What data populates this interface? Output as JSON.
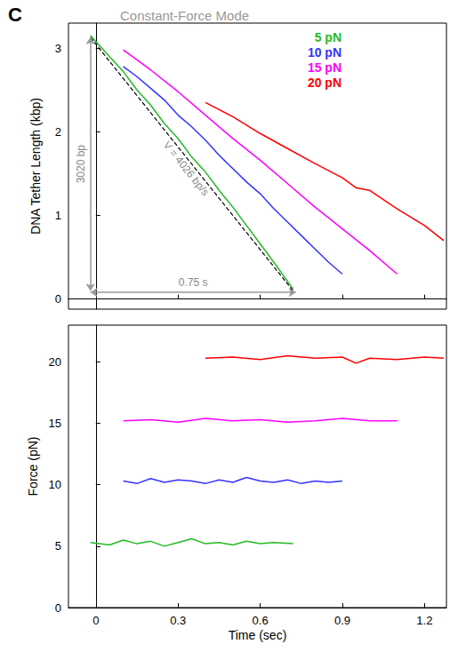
{
  "chart_data": [
    {
      "type": "line",
      "title": "Constant-Force Mode",
      "panel": "C",
      "y_label": "DNA Tether Length (kbp)",
      "xlim": [
        -0.1,
        1.28
      ],
      "xticks": [
        0,
        0.3,
        0.6,
        0.9,
        1.2
      ],
      "ylim": [
        -0.12,
        3.3
      ],
      "yticks": [
        0,
        1,
        2,
        3
      ],
      "tick_labels": "y",
      "grid": false,
      "legend": "upper right",
      "series": [
        {
          "name": "5 pN",
          "color": "#22bb22",
          "x": [
            -0.02,
            0.05,
            0.1,
            0.15,
            0.2,
            0.25,
            0.3,
            0.35,
            0.4,
            0.45,
            0.5,
            0.55,
            0.6,
            0.65,
            0.72
          ],
          "values": [
            3.15,
            2.9,
            2.72,
            2.5,
            2.32,
            2.1,
            1.92,
            1.7,
            1.52,
            1.3,
            1.1,
            0.88,
            0.66,
            0.44,
            0.12
          ]
        },
        {
          "name": "10 pN",
          "color": "#3333ff",
          "x": [
            0.1,
            0.15,
            0.2,
            0.25,
            0.3,
            0.35,
            0.4,
            0.45,
            0.5,
            0.55,
            0.6,
            0.65,
            0.7,
            0.75,
            0.8,
            0.85,
            0.9
          ],
          "values": [
            2.78,
            2.66,
            2.52,
            2.38,
            2.2,
            2.06,
            1.9,
            1.72,
            1.56,
            1.4,
            1.26,
            1.08,
            0.92,
            0.76,
            0.6,
            0.44,
            0.3
          ]
        },
        {
          "name": "15 pN",
          "color": "#ff00ff",
          "x": [
            0.1,
            0.2,
            0.3,
            0.4,
            0.5,
            0.6,
            0.7,
            0.8,
            0.9,
            1.0,
            1.1
          ],
          "values": [
            2.98,
            2.74,
            2.48,
            2.2,
            1.92,
            1.66,
            1.38,
            1.1,
            0.84,
            0.58,
            0.3
          ]
        },
        {
          "name": "20 pN",
          "color": "#ff0000",
          "x": [
            0.4,
            0.5,
            0.6,
            0.7,
            0.8,
            0.9,
            0.95,
            1.0,
            1.1,
            1.2,
            1.27
          ],
          "values": [
            2.35,
            2.18,
            1.98,
            1.8,
            1.62,
            1.45,
            1.33,
            1.3,
            1.08,
            0.88,
            0.7
          ]
        }
      ],
      "fit": {
        "text": "V = 4026 bp/s",
        "color": "#000000",
        "line_style": "dashed",
        "x": [
          -0.02,
          0.72
        ],
        "values": [
          3.13,
          0.1
        ]
      },
      "annotations": [
        {
          "text": "3020 bp",
          "color": "#999999",
          "x": [
            -0.02,
            -0.02
          ],
          "y": [
            0.1,
            3.13
          ]
        },
        {
          "text": "0.75 s",
          "color": "#999999",
          "x": [
            -0.02,
            0.73
          ],
          "y": [
            0.08,
            0.08
          ]
        }
      ]
    },
    {
      "type": "line",
      "x_label": "Time (sec)",
      "y_label": "Force (pN)",
      "xlim": [
        -0.1,
        1.28
      ],
      "xticks": [
        0,
        0.3,
        0.6,
        0.9,
        1.2
      ],
      "ylim": [
        0,
        23
      ],
      "yticks": [
        0,
        5,
        10,
        15,
        20
      ],
      "grid": false,
      "series": [
        {
          "name": "5 pN",
          "color": "#22bb22",
          "x": [
            -0.02,
            0.05,
            0.1,
            0.15,
            0.2,
            0.25,
            0.3,
            0.35,
            0.4,
            0.45,
            0.5,
            0.55,
            0.6,
            0.65,
            0.72
          ],
          "values": [
            5.3,
            5.1,
            5.5,
            5.2,
            5.4,
            5.0,
            5.3,
            5.6,
            5.2,
            5.3,
            5.1,
            5.4,
            5.2,
            5.3,
            5.2
          ]
        },
        {
          "name": "10 pN",
          "color": "#3333ff",
          "x": [
            0.1,
            0.15,
            0.2,
            0.25,
            0.3,
            0.35,
            0.4,
            0.45,
            0.5,
            0.55,
            0.6,
            0.65,
            0.7,
            0.75,
            0.8,
            0.85,
            0.9
          ],
          "values": [
            10.3,
            10.1,
            10.5,
            10.2,
            10.4,
            10.3,
            10.1,
            10.4,
            10.2,
            10.6,
            10.3,
            10.2,
            10.4,
            10.1,
            10.3,
            10.2,
            10.3
          ]
        },
        {
          "name": "15 pN",
          "color": "#ff00ff",
          "x": [
            0.1,
            0.2,
            0.3,
            0.4,
            0.5,
            0.6,
            0.7,
            0.8,
            0.9,
            1.0,
            1.1
          ],
          "values": [
            15.2,
            15.3,
            15.1,
            15.4,
            15.2,
            15.3,
            15.1,
            15.2,
            15.4,
            15.2,
            15.2
          ]
        },
        {
          "name": "20 pN",
          "color": "#ff0000",
          "x": [
            0.4,
            0.5,
            0.6,
            0.7,
            0.8,
            0.9,
            0.95,
            1.0,
            1.1,
            1.2,
            1.27
          ],
          "values": [
            20.3,
            20.4,
            20.2,
            20.5,
            20.3,
            20.4,
            19.9,
            20.3,
            20.2,
            20.4,
            20.3
          ]
        }
      ]
    }
  ]
}
